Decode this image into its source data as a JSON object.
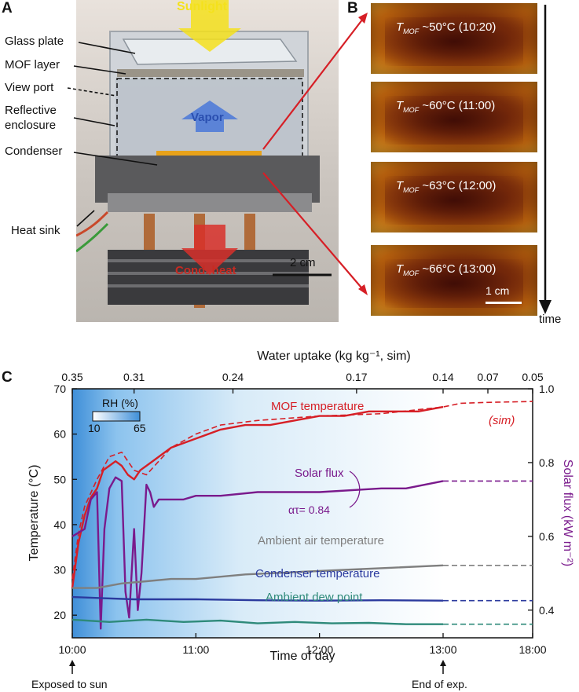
{
  "panel_a": {
    "letter": "A",
    "labels": {
      "glass_plate": "Glass plate",
      "mof_layer": "MOF layer",
      "view_port": "View port",
      "reflective_1": "Reflective",
      "reflective_2": "enclosure",
      "condenser": "Condenser",
      "heat_sink": "Heat sink"
    },
    "overlays": {
      "sunlight": "Sunlight",
      "vapor": "Vapor",
      "cond_heat": "Cond. heat",
      "scale": "2 cm"
    }
  },
  "panel_b": {
    "letter": "B",
    "time_label": "time",
    "scale": "1 cm",
    "thumbs": [
      {
        "sym": "T",
        "sub": "MOF",
        "text": " ~50°C (10:20)"
      },
      {
        "sym": "T",
        "sub": "MOF",
        "text": " ~60°C (11:00)"
      },
      {
        "sym": "T",
        "sub": "MOF",
        "text": " ~63°C (12:00)"
      },
      {
        "sym": "T",
        "sub": "MOF",
        "text": " ~66°C (13:00)"
      }
    ]
  },
  "panel_c": {
    "letter": "C",
    "top_axis_label": "Water uptake (kg kg⁻¹, sim)",
    "top_ticks": [
      "0.35",
      "0.31",
      "0.24",
      "0.17",
      "0.14",
      "0.07",
      "0.05"
    ],
    "rh_label": "RH (%)",
    "rh_min": "10",
    "rh_max": "65",
    "series_labels": {
      "mof": "MOF temperature",
      "sim": "(sim)",
      "solar": "Solar flux",
      "alpha": "ατ= 0.84",
      "ambient": "Ambient air temperature",
      "condenser": "Condenser temperature",
      "dew": "Ambient dew point"
    },
    "bottom_notes": {
      "start": "Exposed to sun",
      "end": "End of exp."
    }
  },
  "chart_data": {
    "type": "line",
    "xlabel": "Time of day",
    "ylabel": "Temperature (°C)",
    "y2label": "Solar flux (kW m⁻²)",
    "x_ticks": [
      "10:00",
      "11:00",
      "12:00",
      "13:00",
      "18:00"
    ],
    "x_domain": [
      0,
      4
    ],
    "ylim": [
      15,
      70
    ],
    "y_ticks": [
      20,
      30,
      40,
      50,
      60,
      70
    ],
    "y2lim": [
      0.325,
      1.0
    ],
    "y2_ticks": [
      0.4,
      0.6,
      0.8,
      1.0
    ],
    "colors": {
      "mof": "#d61f26",
      "solar": "#7a1a8c",
      "ambient": "#7f7f7f",
      "condenser": "#2b3a9e",
      "dew": "#2e8a7a"
    },
    "series": [
      {
        "name": "MOF temperature",
        "axis": "left",
        "style": "solid",
        "x": [
          0,
          0.05,
          0.1,
          0.15,
          0.2,
          0.25,
          0.3,
          0.35,
          0.4,
          0.45,
          0.5,
          0.55,
          0.6,
          0.7,
          0.8,
          1.0,
          1.2,
          1.4,
          1.6,
          1.8,
          2.0,
          2.2,
          2.4,
          2.6,
          2.8,
          3.0
        ],
        "y": [
          26,
          36,
          42,
          46,
          48,
          52,
          53,
          54,
          53,
          51,
          50,
          52,
          53,
          55,
          57,
          59,
          61,
          62,
          62,
          63,
          64,
          64,
          65,
          65,
          65,
          66
        ]
      },
      {
        "name": "MOF temperature (sim)",
        "axis": "left",
        "style": "dashed",
        "x": [
          0,
          0.05,
          0.1,
          0.2,
          0.3,
          0.4,
          0.5,
          0.6,
          0.7,
          0.8,
          1.0,
          1.2,
          1.5,
          2.0,
          2.5,
          3.0,
          3.2,
          3.5,
          4.0
        ],
        "y": [
          28,
          38,
          44,
          50,
          55,
          56,
          52,
          51,
          54,
          57,
          60,
          62,
          63,
          64,
          64.5,
          66,
          66.8,
          67,
          67.2
        ]
      },
      {
        "name": "Solar flux",
        "axis": "right",
        "style": "solid",
        "x": [
          0,
          0.05,
          0.1,
          0.15,
          0.2,
          0.23,
          0.26,
          0.3,
          0.35,
          0.4,
          0.43,
          0.46,
          0.5,
          0.53,
          0.56,
          0.6,
          0.63,
          0.66,
          0.7,
          0.8,
          0.9,
          1.0,
          1.2,
          1.5,
          1.8,
          2.0,
          2.5,
          2.7,
          3.0
        ],
        "y": [
          0.6,
          0.61,
          0.62,
          0.7,
          0.72,
          0.35,
          0.62,
          0.73,
          0.76,
          0.75,
          0.45,
          0.38,
          0.62,
          0.4,
          0.5,
          0.74,
          0.72,
          0.68,
          0.7,
          0.7,
          0.7,
          0.71,
          0.71,
          0.72,
          0.72,
          0.72,
          0.73,
          0.73,
          0.75
        ]
      },
      {
        "name": "Solar flux (sim)",
        "axis": "right",
        "style": "dashed",
        "x": [
          3.0,
          4.0
        ],
        "y": [
          0.75,
          0.75
        ]
      },
      {
        "name": "Ambient air temperature",
        "axis": "left",
        "style": "solid",
        "x": [
          0,
          0.2,
          0.4,
          0.6,
          0.8,
          1.0,
          1.4,
          1.8,
          2.2,
          2.6,
          3.0
        ],
        "y": [
          26,
          26,
          27,
          27.5,
          28,
          28,
          29,
          29.5,
          30,
          30.5,
          31
        ]
      },
      {
        "name": "Ambient air temperature (sim)",
        "axis": "left",
        "style": "dashed",
        "x": [
          3.0,
          4.0
        ],
        "y": [
          31,
          31
        ]
      },
      {
        "name": "Condenser temperature",
        "axis": "left",
        "style": "solid",
        "x": [
          0,
          0.5,
          1.0,
          1.5,
          2.0,
          2.5,
          3.0
        ],
        "y": [
          24,
          23.5,
          23.5,
          23.3,
          23.2,
          23.3,
          23.2
        ]
      },
      {
        "name": "Condenser temperature (sim)",
        "axis": "left",
        "style": "dashed",
        "x": [
          3.0,
          4.0
        ],
        "y": [
          23.2,
          23.2
        ]
      },
      {
        "name": "Ambient dew point",
        "axis": "left",
        "style": "solid",
        "x": [
          0,
          0.3,
          0.6,
          0.9,
          1.2,
          1.5,
          1.8,
          2.1,
          2.4,
          2.7,
          3.0
        ],
        "y": [
          19,
          18.5,
          19,
          18.5,
          18.8,
          18.2,
          18.5,
          18.2,
          18.3,
          18.0,
          18.0
        ]
      },
      {
        "name": "Ambient dew point (sim)",
        "axis": "left",
        "style": "dashed",
        "x": [
          3.0,
          4.0
        ],
        "y": [
          18.0,
          18.0
        ]
      }
    ]
  }
}
